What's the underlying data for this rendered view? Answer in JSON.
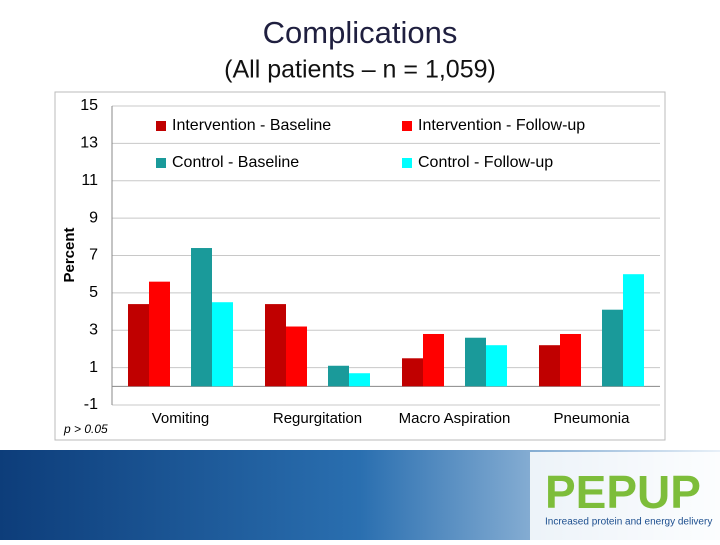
{
  "chart_data": {
    "type": "bar",
    "title": "Complications",
    "subtitle": "(All patients – n = 1,059)",
    "y_label": "Percent",
    "annotation": "p > 0.05",
    "categories": [
      "Vomiting",
      "Regurgitation",
      "Macro Aspiration",
      "Pneumonia"
    ],
    "series": [
      {
        "name": "Intervention - Baseline",
        "color": "#c00000",
        "values": [
          4.4,
          4.4,
          1.5,
          2.2
        ]
      },
      {
        "name": "Intervention - Follow-up",
        "color": "#ff0000",
        "values": [
          5.6,
          3.2,
          2.8,
          2.8
        ]
      },
      {
        "name": "Control - Baseline",
        "color": "#1a9a9a",
        "values": [
          7.4,
          1.1,
          2.6,
          4.1
        ]
      },
      {
        "name": "Control - Follow-up",
        "color": "#00ffff",
        "values": [
          4.5,
          0.7,
          2.2,
          6.0
        ]
      }
    ],
    "ylim": [
      -1,
      15
    ],
    "yticks": [
      -1,
      1,
      3,
      5,
      7,
      9,
      11,
      13,
      15
    ],
    "grid": true,
    "legend": "top"
  },
  "footer": {
    "logo": "PEPUP",
    "tagline": "Increased protein and energy delivery"
  }
}
